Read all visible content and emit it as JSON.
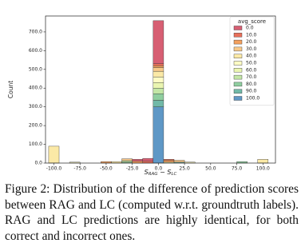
{
  "chart_data": {
    "type": "histogram",
    "xlabel": [
      "S",
      "RAG",
      " − S",
      "LC"
    ],
    "ylabel": "Count",
    "legend_title": "avg_score",
    "legend": "upper right",
    "bins": [
      -105,
      -95,
      -85,
      -75,
      -65,
      -55,
      -45,
      -35,
      -25,
      -15,
      -5,
      5,
      15,
      25,
      35,
      45,
      55,
      65,
      75,
      85,
      95,
      105
    ],
    "xlim": [
      -108,
      112
    ],
    "ylim": [
      0,
      785
    ],
    "xticks": [
      {
        "value": -100,
        "label": "-100.0"
      },
      {
        "value": -75,
        "label": "-75.0"
      },
      {
        "value": -50,
        "label": "-50.0"
      },
      {
        "value": -25,
        "label": "-25.0"
      },
      {
        "value": 0,
        "label": "0.0"
      },
      {
        "value": 25,
        "label": "25.0"
      },
      {
        "value": 50,
        "label": "50.0"
      },
      {
        "value": 75,
        "label": "75.0"
      },
      {
        "value": 100,
        "label": "100.0"
      }
    ],
    "yticks": [
      {
        "value": 0,
        "label": "0.0"
      },
      {
        "value": 100,
        "label": "100.0"
      },
      {
        "value": 200,
        "label": "200.0"
      },
      {
        "value": 300,
        "label": "300.0"
      },
      {
        "value": 400,
        "label": "400.0"
      },
      {
        "value": 500,
        "label": "500.0"
      },
      {
        "value": 600,
        "label": "600.0"
      },
      {
        "value": 700,
        "label": "700.0"
      }
    ],
    "series": [
      {
        "name": "0.0",
        "color": "#d75f73",
        "values": [
          0,
          0,
          0,
          0,
          0,
          0,
          0,
          0,
          10,
          15,
          230,
          0,
          0,
          0,
          0,
          0,
          0,
          0,
          0,
          0,
          0
        ]
      },
      {
        "name": "10.0",
        "color": "#e8705a",
        "values": [
          0,
          0,
          0,
          0,
          0,
          0,
          0,
          0,
          0,
          10,
          10,
          5,
          0,
          0,
          0,
          0,
          0,
          0,
          0,
          0,
          0
        ]
      },
      {
        "name": "20.0",
        "color": "#f3a05e",
        "values": [
          0,
          0,
          0,
          0,
          0,
          8,
          0,
          0,
          10,
          0,
          10,
          10,
          0,
          0,
          0,
          0,
          0,
          0,
          0,
          0,
          0
        ]
      },
      {
        "name": "30.0",
        "color": "#f8c98a",
        "values": [
          0,
          0,
          0,
          0,
          0,
          0,
          0,
          10,
          0,
          0,
          20,
          0,
          10,
          0,
          0,
          0,
          0,
          0,
          0,
          0,
          0
        ]
      },
      {
        "name": "40.0",
        "color": "#fbe9a6",
        "values": [
          90,
          0,
          0,
          0,
          0,
          0,
          8,
          0,
          0,
          0,
          30,
          0,
          0,
          0,
          0,
          0,
          0,
          0,
          0,
          0,
          20
        ]
      },
      {
        "name": "50.0",
        "color": "#fefbc4",
        "values": [
          0,
          0,
          5,
          0,
          0,
          0,
          0,
          0,
          0,
          0,
          30,
          0,
          0,
          6,
          0,
          0,
          0,
          0,
          0,
          0,
          0
        ]
      },
      {
        "name": "60.0",
        "color": "#eaf5b0",
        "values": [
          0,
          0,
          0,
          0,
          0,
          0,
          0,
          0,
          0,
          0,
          30,
          5,
          0,
          0,
          0,
          0,
          0,
          0,
          0,
          0,
          0
        ]
      },
      {
        "name": "70.0",
        "color": "#c3e6a6",
        "values": [
          0,
          0,
          0,
          0,
          0,
          0,
          0,
          8,
          0,
          0,
          30,
          0,
          0,
          0,
          0,
          0,
          0,
          0,
          0,
          0,
          0
        ]
      },
      {
        "name": "80.0",
        "color": "#8fce9f",
        "values": [
          0,
          0,
          0,
          0,
          0,
          0,
          0,
          5,
          0,
          0,
          35,
          0,
          0,
          0,
          0,
          0,
          0,
          0,
          8,
          0,
          0
        ]
      },
      {
        "name": "90.0",
        "color": "#71b9a8",
        "values": [
          0,
          0,
          0,
          0,
          0,
          0,
          0,
          0,
          0,
          0,
          35,
          0,
          5,
          0,
          0,
          0,
          0,
          0,
          0,
          0,
          0
        ]
      },
      {
        "name": "100.0",
        "color": "#5f98c6",
        "values": [
          0,
          0,
          0,
          0,
          0,
          0,
          0,
          0,
          0,
          0,
          300,
          0,
          0,
          0,
          0,
          0,
          0,
          0,
          0,
          0,
          0
        ]
      }
    ]
  },
  "caption": "Figure 2: Distribution of the difference of prediction scores between RAG and LC (computed w.r.t. groundtruth labels). RAG and LC predictions are highly identical, for both correct and incorrect ones."
}
